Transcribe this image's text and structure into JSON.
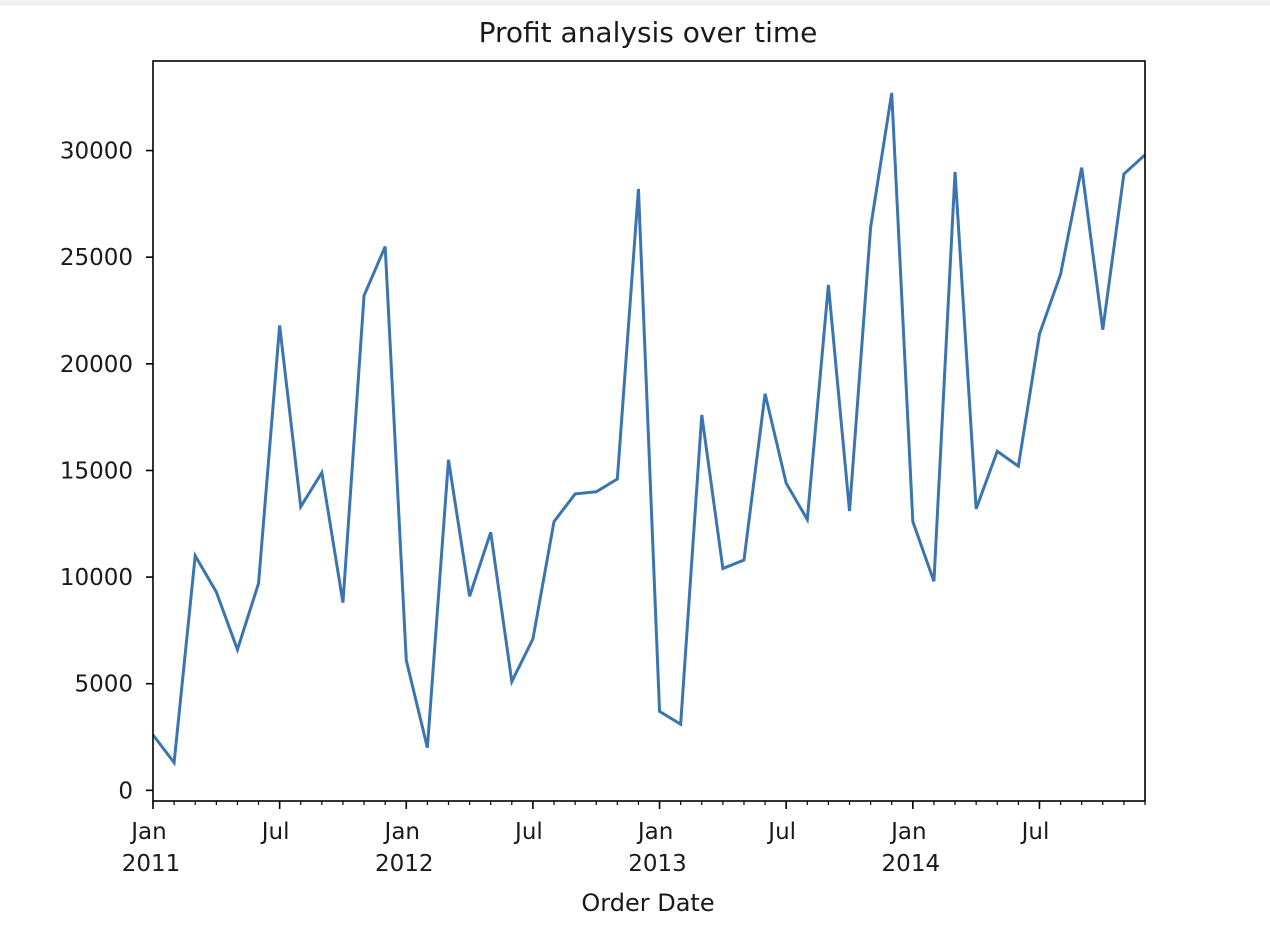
{
  "chart_data": {
    "type": "line",
    "title": "Profit analysis over time",
    "xlabel": "Order Date",
    "ylabel": "",
    "x_range": [
      "2011-01",
      "2014-12"
    ],
    "ylim": [
      -500,
      34200
    ],
    "y_ticks": [
      0,
      5000,
      10000,
      15000,
      20000,
      25000,
      30000
    ],
    "x_major_ticks": [
      {
        "date": "2011-01",
        "label": "Jan",
        "sublabel": "2011"
      },
      {
        "date": "2011-07",
        "label": "Jul",
        "sublabel": ""
      },
      {
        "date": "2012-01",
        "label": "Jan",
        "sublabel": "2012"
      },
      {
        "date": "2012-07",
        "label": "Jul",
        "sublabel": ""
      },
      {
        "date": "2013-01",
        "label": "Jan",
        "sublabel": "2013"
      },
      {
        "date": "2013-07",
        "label": "Jul",
        "sublabel": ""
      },
      {
        "date": "2014-01",
        "label": "Jan",
        "sublabel": "2014"
      },
      {
        "date": "2014-07",
        "label": "Jul",
        "sublabel": ""
      }
    ],
    "grid": false,
    "line_color": "#3b75af",
    "series": [
      {
        "x": [
          "2011-01",
          "2011-02",
          "2011-03",
          "2011-04",
          "2011-05",
          "2011-06",
          "2011-07",
          "2011-08",
          "2011-09",
          "2011-10",
          "2011-11",
          "2011-12",
          "2012-01",
          "2012-02",
          "2012-03",
          "2012-04",
          "2012-05",
          "2012-06",
          "2012-07",
          "2012-08",
          "2012-09",
          "2012-10",
          "2012-11",
          "2012-12",
          "2013-01",
          "2013-02",
          "2013-03",
          "2013-04",
          "2013-05",
          "2013-06",
          "2013-07",
          "2013-08",
          "2013-09",
          "2013-10",
          "2013-11",
          "2013-12",
          "2014-01",
          "2014-02",
          "2014-03",
          "2014-04",
          "2014-05",
          "2014-06",
          "2014-07",
          "2014-08",
          "2014-09",
          "2014-10",
          "2014-11",
          "2014-12"
        ],
        "values": [
          2600,
          1300,
          11000,
          9300,
          6600,
          9700,
          21800,
          13300,
          14900,
          8800,
          23200,
          25500,
          6100,
          2000,
          15500,
          9100,
          12100,
          5100,
          7100,
          12600,
          13900,
          14000,
          14600,
          28200,
          3700,
          3100,
          17600,
          10400,
          10800,
          18600,
          14400,
          12700,
          23700,
          13100,
          26400,
          32700,
          12600,
          9800,
          29000,
          13200,
          15900,
          15200,
          21400,
          24200,
          29200,
          21600,
          28900,
          29800
        ]
      }
    ]
  }
}
